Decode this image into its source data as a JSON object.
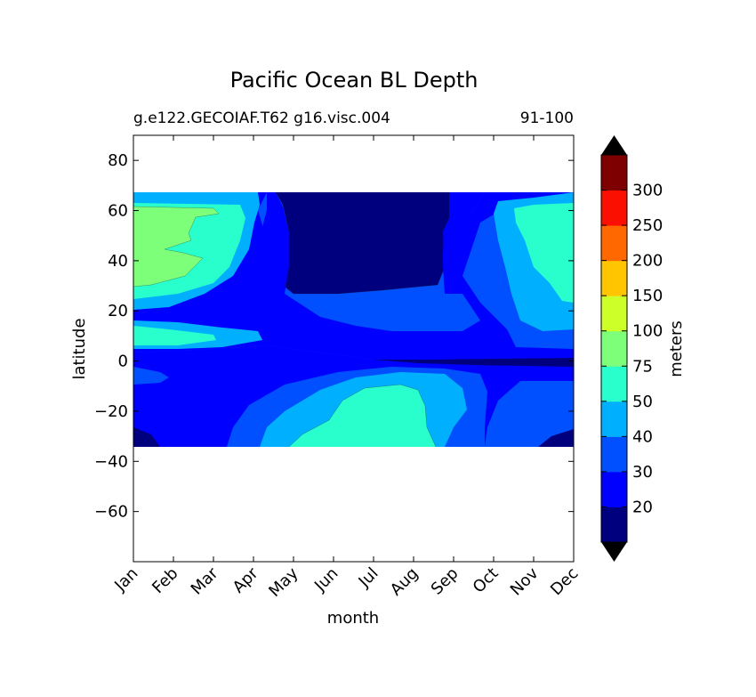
{
  "chart_data": {
    "type": "contourf",
    "title": "Pacific Ocean BL Depth",
    "subtitle_left": "g.e122.GECOIAF.T62 g16.visc.004",
    "subtitle_right": "91-100",
    "xlabel": "month",
    "ylabel": "latitude",
    "x_ticks": [
      "Jan",
      "Feb",
      "Mar",
      "Apr",
      "May",
      "Jun",
      "Jul",
      "Aug",
      "Sep",
      "Oct",
      "Nov",
      "Dec"
    ],
    "ylim": [
      -80,
      90
    ],
    "y_ticks": [
      -60,
      -40,
      -20,
      0,
      20,
      40,
      60,
      80
    ],
    "data_lat_range": [
      -34,
      67
    ],
    "colorbar": {
      "label": "meters",
      "levels": [
        20,
        30,
        40,
        50,
        75,
        100,
        150,
        200,
        250,
        300
      ],
      "colors": [
        "#00007f",
        "#0000ff",
        "#0050ff",
        "#00b0ff",
        "#29ffcd",
        "#7dff79",
        "#cdff29",
        "#ffc500",
        "#ff6800",
        "#fa0f00",
        "#7f0000"
      ],
      "extend": "both",
      "over_color": "#000000",
      "under_color": "#000000"
    },
    "contour_regions": [
      {
        "level_color": "#0000ff",
        "region": [
          [
            0,
            -29
          ],
          [
            0.5,
            -32
          ],
          [
            1,
            -34
          ],
          [
            12,
            -34
          ],
          [
            12,
            -28
          ],
          [
            11.5,
            -25
          ],
          [
            11,
            -24
          ],
          [
            10.2,
            -20
          ],
          [
            10,
            -8
          ],
          [
            9.5,
            -4
          ],
          [
            8,
            -3
          ],
          [
            6,
            0
          ],
          [
            4.5,
            4
          ],
          [
            3,
            3
          ],
          [
            1,
            -2
          ],
          [
            0,
            0
          ],
          [
            0,
            67
          ],
          [
            12,
            67
          ]
        ]
      },
      {
        "level_color": "#0050ff",
        "region": [
          [
            3,
            -34
          ],
          [
            3.5,
            -24
          ],
          [
            4.5,
            -15
          ],
          [
            6,
            -4
          ],
          [
            7.5,
            -4
          ],
          [
            8.5,
            -6
          ],
          [
            9.5,
            -20
          ],
          [
            10,
            -34
          ]
        ]
      },
      {
        "level_color": "#00b0ff",
        "region": [
          [
            4,
            -34
          ],
          [
            5,
            -24
          ],
          [
            6,
            -10
          ],
          [
            7,
            -8
          ],
          [
            8,
            -12
          ],
          [
            8.5,
            -25
          ],
          [
            9,
            -34
          ]
        ]
      },
      {
        "level_color": "#29ffcd",
        "region": [
          [
            4.5,
            -34
          ],
          [
            5.5,
            -25
          ],
          [
            6,
            -10
          ],
          [
            7,
            -9
          ],
          [
            7.5,
            -20
          ],
          [
            8,
            -34
          ]
        ]
      },
      {
        "level_color": "#00007f",
        "region": [
          [
            4,
            67
          ],
          [
            4,
            46
          ],
          [
            4,
            32
          ],
          [
            5,
            27
          ],
          [
            7,
            28
          ],
          [
            7.5,
            35
          ],
          [
            8,
            50
          ],
          [
            8,
            67
          ]
        ]
      },
      {
        "level_color": "#7dff79",
        "region": [
          [
            0,
            30
          ],
          [
            0.5,
            31
          ],
          [
            1.5,
            41
          ],
          [
            2,
            48
          ],
          [
            2.5,
            60
          ],
          [
            0,
            62
          ]
        ]
      }
    ]
  }
}
